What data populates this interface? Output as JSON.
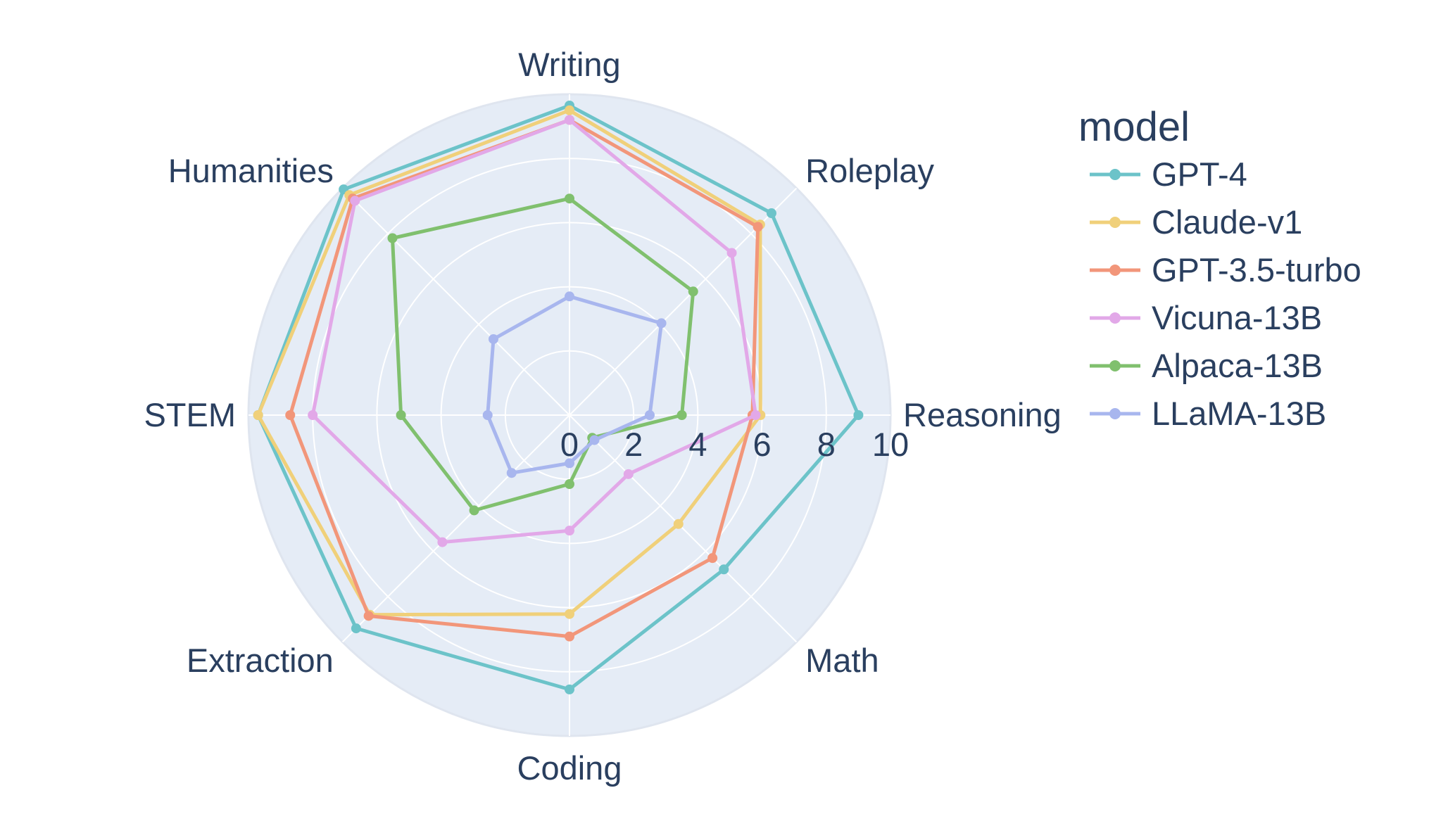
{
  "chart_data": {
    "type": "radar",
    "categories": [
      "Writing",
      "Roleplay",
      "Reasoning",
      "Math",
      "Coding",
      "Extraction",
      "STEM",
      "Humanities"
    ],
    "r_range": [
      0,
      10
    ],
    "r_ticks": [
      "0",
      "2",
      "4",
      "6",
      "8",
      "10"
    ],
    "legend_title": "model",
    "legend_position": "right",
    "grid": true,
    "colors": {
      "background": "#e5ecf6",
      "grid": "#ffffff",
      "text": "#2a3f5f"
    },
    "series": [
      {
        "name": "GPT-4",
        "color": "#6cc3c9",
        "values": [
          9.65,
          8.9,
          9.0,
          6.8,
          8.55,
          9.4,
          9.7,
          9.95
        ]
      },
      {
        "name": "Claude-v1",
        "color": "#f0d07a",
        "values": [
          9.5,
          8.4,
          5.95,
          4.8,
          6.2,
          8.8,
          9.7,
          9.7
        ]
      },
      {
        "name": "GPT-3.5-turbo",
        "color": "#f2967a",
        "values": [
          9.2,
          8.3,
          5.7,
          6.3,
          6.9,
          8.85,
          8.7,
          9.55
        ]
      },
      {
        "name": "Vicuna-13B",
        "color": "#e2a8e8",
        "values": [
          9.2,
          7.15,
          5.8,
          2.6,
          3.6,
          5.6,
          8.0,
          9.45
        ]
      },
      {
        "name": "Alpaca-13B",
        "color": "#80c06e",
        "values": [
          6.75,
          5.45,
          3.5,
          1.0,
          2.15,
          4.2,
          5.25,
          7.8
        ]
      },
      {
        "name": "LLaMA-13B",
        "color": "#a8b6ee",
        "values": [
          3.7,
          4.05,
          2.5,
          1.1,
          1.5,
          2.55,
          2.55,
          3.35
        ]
      }
    ]
  }
}
